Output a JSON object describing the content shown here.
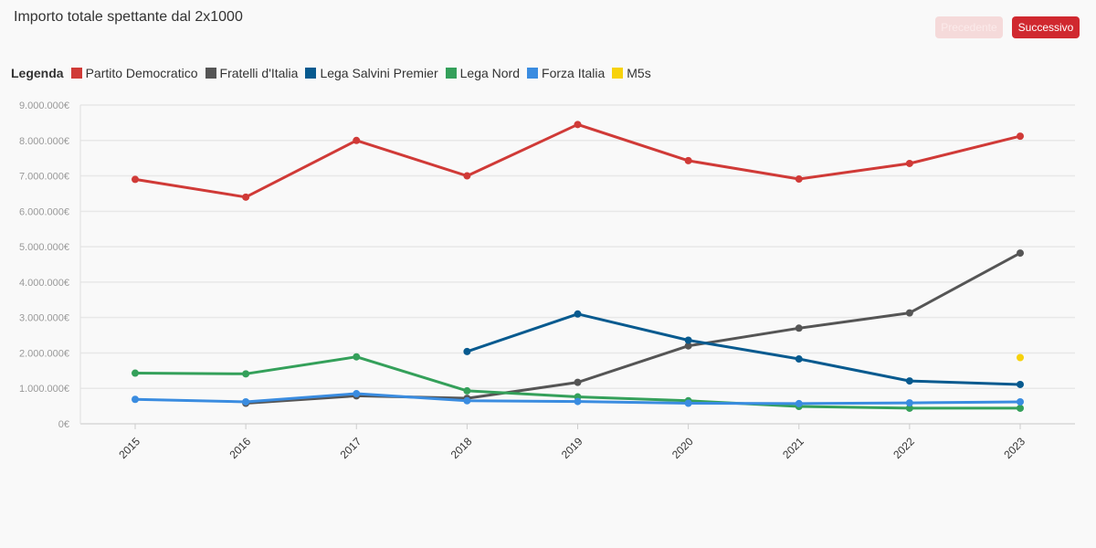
{
  "header": {
    "title": "Importo totale spettante dal 2x1000",
    "prev_label": "Precedente",
    "next_label": "Successivo"
  },
  "legend": {
    "title": "Legenda"
  },
  "colors": {
    "Partito Democratico": "#d03a37",
    "Fratelli d'Italia": "#555555",
    "Lega Salvini Premier": "#075a8f",
    "Lega Nord": "#34a05a",
    "Forza Italia": "#3a8ce0",
    "M5s": "#f7d20b"
  },
  "chart_data": {
    "type": "line",
    "title": "Importo totale spettante dal 2x1000",
    "xlabel": "",
    "ylabel": "",
    "x": [
      "2015",
      "2016",
      "2017",
      "2018",
      "2019",
      "2020",
      "2021",
      "2022",
      "2023"
    ],
    "ylim": [
      0,
      9000000
    ],
    "yticks": [
      {
        "value": 0,
        "label": "0€"
      },
      {
        "value": 1000000,
        "label": "1.000.000€"
      },
      {
        "value": 2000000,
        "label": "2.000.000€"
      },
      {
        "value": 3000000,
        "label": "3.000.000€"
      },
      {
        "value": 4000000,
        "label": "4.000.000€"
      },
      {
        "value": 5000000,
        "label": "5.000.000€"
      },
      {
        "value": 6000000,
        "label": "6.000.000€"
      },
      {
        "value": 7000000,
        "label": "7.000.000€"
      },
      {
        "value": 8000000,
        "label": "8.000.000€"
      },
      {
        "value": 9000000,
        "label": "9.000.000€"
      }
    ],
    "grid": true,
    "legend_position": "top-left",
    "series": [
      {
        "name": "Partito Democratico",
        "values": [
          6900000,
          6400000,
          8000000,
          7000000,
          8450000,
          7430000,
          6910000,
          7350000,
          8120000
        ]
      },
      {
        "name": "Fratelli d'Italia",
        "values": [
          null,
          580000,
          790000,
          720000,
          1170000,
          2200000,
          2700000,
          3130000,
          4820000
        ]
      },
      {
        "name": "Lega Salvini Premier",
        "values": [
          null,
          null,
          null,
          2040000,
          3100000,
          2360000,
          1830000,
          1210000,
          1110000
        ]
      },
      {
        "name": "Lega Nord",
        "values": [
          1430000,
          1410000,
          1890000,
          930000,
          760000,
          650000,
          490000,
          440000,
          440000
        ]
      },
      {
        "name": "Forza Italia",
        "values": [
          690000,
          620000,
          850000,
          650000,
          630000,
          580000,
          570000,
          590000,
          620000
        ]
      },
      {
        "name": "M5s",
        "values": [
          null,
          null,
          null,
          null,
          null,
          null,
          null,
          null,
          1870000
        ]
      }
    ]
  }
}
